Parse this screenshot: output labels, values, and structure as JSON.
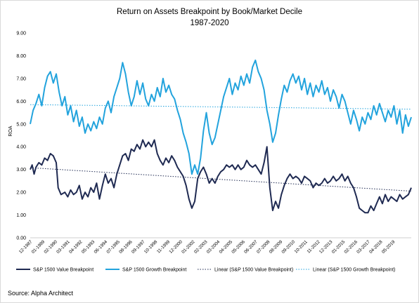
{
  "chart_data": {
    "type": "line",
    "title": "Return on Assets Breakpoint by Book/Market Decile",
    "subtitle": "1987-2020",
    "ylabel": "ROA",
    "xlabel": "",
    "ylim": [
      0,
      9
    ],
    "y_ticks": [
      "0.00",
      "1.00",
      "2.00",
      "3.00",
      "4.00",
      "5.00",
      "6.00",
      "7.00",
      "8.00",
      "9.00"
    ],
    "x_range": [
      "1987-12",
      "2020-12"
    ],
    "x_ticks": [
      "12-1987",
      "01-1989",
      "02-1990",
      "03-1991",
      "04-1992",
      "05-1993",
      "06-1994",
      "07-1995",
      "08-1996",
      "09-1997",
      "10-1998",
      "11-1999",
      "12-2000",
      "01-2002",
      "02-2003",
      "03-2004",
      "04-2005",
      "05-2006",
      "06-2007",
      "07-2008",
      "08-2009",
      "09-2010",
      "10-2011",
      "11-2012",
      "12-2013",
      "01-2015",
      "02-2016",
      "03-2017",
      "04-2018",
      "05-2019"
    ],
    "grid": false,
    "legend_position": "bottom",
    "series": [
      {
        "name": "S&P 1500 Value Breakpoint",
        "color": "#1f2a52",
        "style": "solid",
        "points": [
          [
            "1987-12",
            3.0
          ],
          [
            "1988-02",
            3.2
          ],
          [
            "1988-04",
            2.8
          ],
          [
            "1988-06",
            3.1
          ],
          [
            "1988-09",
            3.3
          ],
          [
            "1988-12",
            3.2
          ],
          [
            "1989-03",
            3.5
          ],
          [
            "1989-06",
            3.4
          ],
          [
            "1989-09",
            3.7
          ],
          [
            "1989-12",
            3.6
          ],
          [
            "1990-03",
            3.3
          ],
          [
            "1990-05",
            2.2
          ],
          [
            "1990-08",
            1.9
          ],
          [
            "1990-12",
            2.0
          ],
          [
            "1991-03",
            1.8
          ],
          [
            "1991-06",
            2.1
          ],
          [
            "1991-09",
            1.9
          ],
          [
            "1991-12",
            2.0
          ],
          [
            "1992-03",
            2.3
          ],
          [
            "1992-06",
            1.7
          ],
          [
            "1992-09",
            2.0
          ],
          [
            "1992-12",
            1.8
          ],
          [
            "1993-03",
            2.2
          ],
          [
            "1993-06",
            2.0
          ],
          [
            "1993-09",
            2.4
          ],
          [
            "1993-12",
            1.7
          ],
          [
            "1994-03",
            2.3
          ],
          [
            "1994-06",
            2.8
          ],
          [
            "1994-09",
            2.4
          ],
          [
            "1994-12",
            2.6
          ],
          [
            "1995-03",
            2.2
          ],
          [
            "1995-06",
            2.8
          ],
          [
            "1995-09",
            3.2
          ],
          [
            "1995-12",
            3.6
          ],
          [
            "1996-03",
            3.7
          ],
          [
            "1996-06",
            3.4
          ],
          [
            "1996-09",
            3.9
          ],
          [
            "1996-12",
            3.8
          ],
          [
            "1997-03",
            4.1
          ],
          [
            "1997-06",
            3.9
          ],
          [
            "1997-09",
            4.3
          ],
          [
            "1997-12",
            4.0
          ],
          [
            "1998-03",
            4.2
          ],
          [
            "1998-06",
            4.0
          ],
          [
            "1998-09",
            4.3
          ],
          [
            "1998-12",
            3.7
          ],
          [
            "1999-03",
            3.4
          ],
          [
            "1999-06",
            3.2
          ],
          [
            "1999-09",
            3.5
          ],
          [
            "1999-12",
            3.3
          ],
          [
            "2000-03",
            3.6
          ],
          [
            "2000-06",
            3.4
          ],
          [
            "2000-09",
            3.1
          ],
          [
            "2000-12",
            2.9
          ],
          [
            "2001-03",
            2.7
          ],
          [
            "2001-06",
            2.3
          ],
          [
            "2001-09",
            1.7
          ],
          [
            "2001-12",
            1.3
          ],
          [
            "2002-03",
            1.6
          ],
          [
            "2002-06",
            2.6
          ],
          [
            "2002-09",
            2.9
          ],
          [
            "2002-12",
            3.1
          ],
          [
            "2003-03",
            2.8
          ],
          [
            "2003-06",
            2.4
          ],
          [
            "2003-09",
            2.6
          ],
          [
            "2003-12",
            2.4
          ],
          [
            "2004-03",
            2.7
          ],
          [
            "2004-06",
            2.9
          ],
          [
            "2004-09",
            3.0
          ],
          [
            "2004-12",
            3.2
          ],
          [
            "2005-03",
            3.1
          ],
          [
            "2005-06",
            3.2
          ],
          [
            "2005-09",
            3.0
          ],
          [
            "2005-12",
            3.2
          ],
          [
            "2006-03",
            3.0
          ],
          [
            "2006-06",
            3.1
          ],
          [
            "2006-09",
            3.4
          ],
          [
            "2006-12",
            3.2
          ],
          [
            "2007-03",
            3.1
          ],
          [
            "2007-06",
            3.2
          ],
          [
            "2007-09",
            3.0
          ],
          [
            "2007-12",
            2.8
          ],
          [
            "2008-03",
            3.3
          ],
          [
            "2008-06",
            4.0
          ],
          [
            "2008-09",
            2.2
          ],
          [
            "2008-12",
            1.2
          ],
          [
            "2009-03",
            1.6
          ],
          [
            "2009-06",
            1.3
          ],
          [
            "2009-09",
            1.9
          ],
          [
            "2009-12",
            2.3
          ],
          [
            "2010-03",
            2.6
          ],
          [
            "2010-06",
            2.8
          ],
          [
            "2010-09",
            2.6
          ],
          [
            "2010-12",
            2.7
          ],
          [
            "2011-03",
            2.6
          ],
          [
            "2011-06",
            2.4
          ],
          [
            "2011-09",
            2.7
          ],
          [
            "2011-12",
            2.6
          ],
          [
            "2012-03",
            2.5
          ],
          [
            "2012-06",
            2.2
          ],
          [
            "2012-09",
            2.4
          ],
          [
            "2012-12",
            2.3
          ],
          [
            "2013-03",
            2.4
          ],
          [
            "2013-06",
            2.6
          ],
          [
            "2013-09",
            2.4
          ],
          [
            "2013-12",
            2.5
          ],
          [
            "2014-03",
            2.7
          ],
          [
            "2014-06",
            2.5
          ],
          [
            "2014-09",
            2.6
          ],
          [
            "2014-12",
            2.8
          ],
          [
            "2015-03",
            2.5
          ],
          [
            "2015-06",
            2.7
          ],
          [
            "2015-09",
            2.4
          ],
          [
            "2015-12",
            2.2
          ],
          [
            "2016-03",
            1.8
          ],
          [
            "2016-06",
            1.3
          ],
          [
            "2016-09",
            1.2
          ],
          [
            "2016-12",
            1.1
          ],
          [
            "2017-03",
            1.1
          ],
          [
            "2017-06",
            1.4
          ],
          [
            "2017-09",
            1.2
          ],
          [
            "2017-12",
            1.5
          ],
          [
            "2018-03",
            1.8
          ],
          [
            "2018-06",
            1.5
          ],
          [
            "2018-09",
            1.9
          ],
          [
            "2018-12",
            1.6
          ],
          [
            "2019-03",
            1.8
          ],
          [
            "2019-06",
            1.7
          ],
          [
            "2019-09",
            1.6
          ],
          [
            "2019-12",
            1.9
          ],
          [
            "2020-03",
            1.7
          ],
          [
            "2020-06",
            1.8
          ],
          [
            "2020-09",
            1.9
          ],
          [
            "2020-12",
            2.2
          ]
        ]
      },
      {
        "name": "S&P 1500 Growth Breakpoint",
        "color": "#22a3dd",
        "style": "solid",
        "points": [
          [
            "1987-12",
            5.0
          ],
          [
            "1988-03",
            5.6
          ],
          [
            "1988-06",
            5.9
          ],
          [
            "1988-09",
            6.3
          ],
          [
            "1988-12",
            5.8
          ],
          [
            "1989-03",
            6.6
          ],
          [
            "1989-06",
            7.1
          ],
          [
            "1989-09",
            7.3
          ],
          [
            "1989-12",
            6.8
          ],
          [
            "1990-03",
            7.2
          ],
          [
            "1990-06",
            6.4
          ],
          [
            "1990-09",
            5.8
          ],
          [
            "1990-12",
            6.2
          ],
          [
            "1991-03",
            5.4
          ],
          [
            "1991-06",
            5.8
          ],
          [
            "1991-09",
            5.1
          ],
          [
            "1991-12",
            5.6
          ],
          [
            "1992-03",
            4.9
          ],
          [
            "1992-06",
            5.3
          ],
          [
            "1992-09",
            4.6
          ],
          [
            "1992-12",
            5.0
          ],
          [
            "1993-03",
            4.7
          ],
          [
            "1993-06",
            5.1
          ],
          [
            "1993-09",
            4.8
          ],
          [
            "1993-12",
            5.3
          ],
          [
            "1994-03",
            5.0
          ],
          [
            "1994-06",
            5.7
          ],
          [
            "1994-09",
            6.0
          ],
          [
            "1994-12",
            5.5
          ],
          [
            "1995-03",
            6.2
          ],
          [
            "1995-06",
            6.6
          ],
          [
            "1995-09",
            7.0
          ],
          [
            "1995-12",
            7.7
          ],
          [
            "1996-03",
            7.2
          ],
          [
            "1996-06",
            6.4
          ],
          [
            "1996-09",
            5.8
          ],
          [
            "1996-12",
            6.2
          ],
          [
            "1997-03",
            6.9
          ],
          [
            "1997-06",
            6.3
          ],
          [
            "1997-09",
            6.8
          ],
          [
            "1997-12",
            6.1
          ],
          [
            "1998-03",
            5.8
          ],
          [
            "1998-06",
            6.3
          ],
          [
            "1998-09",
            6.0
          ],
          [
            "1998-12",
            6.6
          ],
          [
            "1999-03",
            6.2
          ],
          [
            "1999-06",
            7.0
          ],
          [
            "1999-09",
            6.4
          ],
          [
            "1999-12",
            6.7
          ],
          [
            "2000-03",
            6.3
          ],
          [
            "2000-06",
            6.1
          ],
          [
            "2000-09",
            5.6
          ],
          [
            "2000-12",
            5.2
          ],
          [
            "2001-03",
            4.6
          ],
          [
            "2001-06",
            4.2
          ],
          [
            "2001-09",
            3.7
          ],
          [
            "2001-12",
            2.8
          ],
          [
            "2002-03",
            3.2
          ],
          [
            "2002-06",
            2.8
          ],
          [
            "2002-09",
            3.5
          ],
          [
            "2002-12",
            4.7
          ],
          [
            "2003-03",
            5.5
          ],
          [
            "2003-06",
            4.6
          ],
          [
            "2003-09",
            4.1
          ],
          [
            "2003-12",
            4.4
          ],
          [
            "2004-03",
            5.0
          ],
          [
            "2004-06",
            5.6
          ],
          [
            "2004-09",
            6.2
          ],
          [
            "2004-12",
            6.6
          ],
          [
            "2005-03",
            7.0
          ],
          [
            "2005-06",
            6.3
          ],
          [
            "2005-09",
            6.8
          ],
          [
            "2005-12",
            6.5
          ],
          [
            "2006-03",
            7.1
          ],
          [
            "2006-06",
            6.7
          ],
          [
            "2006-09",
            7.2
          ],
          [
            "2006-12",
            6.8
          ],
          [
            "2007-03",
            7.5
          ],
          [
            "2007-06",
            7.8
          ],
          [
            "2007-09",
            7.3
          ],
          [
            "2007-12",
            7.0
          ],
          [
            "2008-03",
            6.5
          ],
          [
            "2008-06",
            5.6
          ],
          [
            "2008-09",
            5.0
          ],
          [
            "2008-12",
            4.2
          ],
          [
            "2009-03",
            4.6
          ],
          [
            "2009-06",
            5.4
          ],
          [
            "2009-09",
            6.1
          ],
          [
            "2009-12",
            6.7
          ],
          [
            "2010-03",
            6.4
          ],
          [
            "2010-06",
            6.9
          ],
          [
            "2010-09",
            7.2
          ],
          [
            "2010-12",
            6.8
          ],
          [
            "2011-03",
            7.1
          ],
          [
            "2011-06",
            6.5
          ],
          [
            "2011-09",
            7.0
          ],
          [
            "2011-12",
            6.3
          ],
          [
            "2012-03",
            6.8
          ],
          [
            "2012-06",
            6.2
          ],
          [
            "2012-09",
            6.7
          ],
          [
            "2012-12",
            6.4
          ],
          [
            "2013-03",
            6.9
          ],
          [
            "2013-06",
            6.3
          ],
          [
            "2013-09",
            6.6
          ],
          [
            "2013-12",
            6.0
          ],
          [
            "2014-03",
            6.5
          ],
          [
            "2014-06",
            6.2
          ],
          [
            "2014-09",
            5.7
          ],
          [
            "2014-12",
            6.3
          ],
          [
            "2015-03",
            6.0
          ],
          [
            "2015-06",
            5.5
          ],
          [
            "2015-09",
            5.0
          ],
          [
            "2015-12",
            5.6
          ],
          [
            "2016-03",
            5.2
          ],
          [
            "2016-06",
            4.7
          ],
          [
            "2016-09",
            5.3
          ],
          [
            "2016-12",
            5.0
          ],
          [
            "2017-03",
            5.5
          ],
          [
            "2017-06",
            5.2
          ],
          [
            "2017-09",
            5.8
          ],
          [
            "2017-12",
            5.4
          ],
          [
            "2018-03",
            5.9
          ],
          [
            "2018-06",
            5.5
          ],
          [
            "2018-09",
            5.1
          ],
          [
            "2018-12",
            5.6
          ],
          [
            "2019-03",
            5.3
          ],
          [
            "2019-06",
            5.8
          ],
          [
            "2019-09",
            5.0
          ],
          [
            "2019-12",
            5.6
          ],
          [
            "2020-03",
            4.6
          ],
          [
            "2020-06",
            5.4
          ],
          [
            "2020-09",
            4.9
          ],
          [
            "2020-12",
            5.3
          ]
        ]
      },
      {
        "name": "Linear (S&P 1500 Value Breakpoint)",
        "color": "#1f2a52",
        "style": "dotted",
        "points": [
          [
            "1987-12",
            3.08
          ],
          [
            "2020-12",
            2.05
          ]
        ]
      },
      {
        "name": "Linear (S&P 1500 Growth Breakpoint)",
        "color": "#22a3dd",
        "style": "dotted",
        "points": [
          [
            "1987-12",
            5.85
          ],
          [
            "2020-12",
            5.65
          ]
        ]
      }
    ]
  },
  "source": "Source: Alpha Architect"
}
